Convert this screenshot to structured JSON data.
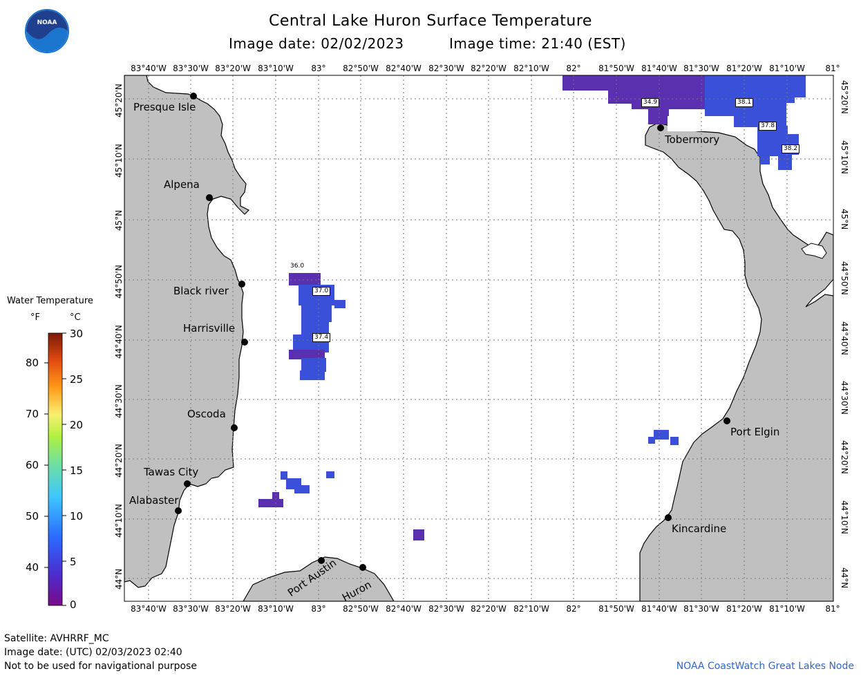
{
  "header": {
    "title": "Central Lake Huron Surface Temperature",
    "image_date": "Image date: 02/02/2023",
    "image_time": "Image time: 21:40 (EST)"
  },
  "longitude_labels": [
    "83°40'W",
    "83°30'W",
    "83°20'W",
    "83°10'W",
    "83°",
    "82°50'W",
    "82°40'W",
    "82°30'W",
    "82°20'W",
    "82°10'W",
    "82°",
    "81°50'W",
    "81°40'W",
    "81°30'W",
    "81°20'W",
    "81°10'W",
    "81°"
  ],
  "latitude_labels": [
    "45°20'N",
    "45°10'N",
    "45°N",
    "44°50'N",
    "44°40'N",
    "44°30'N",
    "44°20'N",
    "44°10'N",
    "44°N"
  ],
  "places": {
    "presque_isle": "Presque Isle",
    "alpena": "Alpena",
    "black_river": "Black river",
    "harrisville": "Harrisville",
    "oscoda": "Oscoda",
    "tawas_city": "Tawas City",
    "alabaster": "Alabaster",
    "port_austin": "Port Austin",
    "huron": "Huron",
    "tobermory": "Tobermory",
    "port_elgin": "Port Elgin",
    "kincardine": "Kincardine"
  },
  "sst_labels": {
    "t1": "36.0",
    "t2": "37.0",
    "t3": "37.4",
    "t4": "34.9",
    "t5": "38.1",
    "t6": "37.8",
    "t7": "38.2"
  },
  "legend": {
    "title": "Water Temperature",
    "unit_f": "°F",
    "unit_c": "°C",
    "f_ticks": [
      "80",
      "70",
      "60",
      "50",
      "40"
    ],
    "c_ticks": [
      "30",
      "25",
      "20",
      "15",
      "10",
      "5",
      "0"
    ]
  },
  "footer": {
    "satellite": "Satellite: AVHRRF_MC",
    "utc_date": "Image date: (UTC) 02/03/2023  02:40",
    "disclaimer": "Not to be used for navigational purpose",
    "credit": "NOAA CoastWatch Great Lakes Node"
  },
  "colors": {
    "land": "#c0c0c0",
    "water": "#ffffff",
    "sst_blue": "#3a50d8",
    "sst_purple": "#5a2fb0",
    "credit": "#3366cc"
  },
  "icons": [
    "noaa-logo"
  ]
}
